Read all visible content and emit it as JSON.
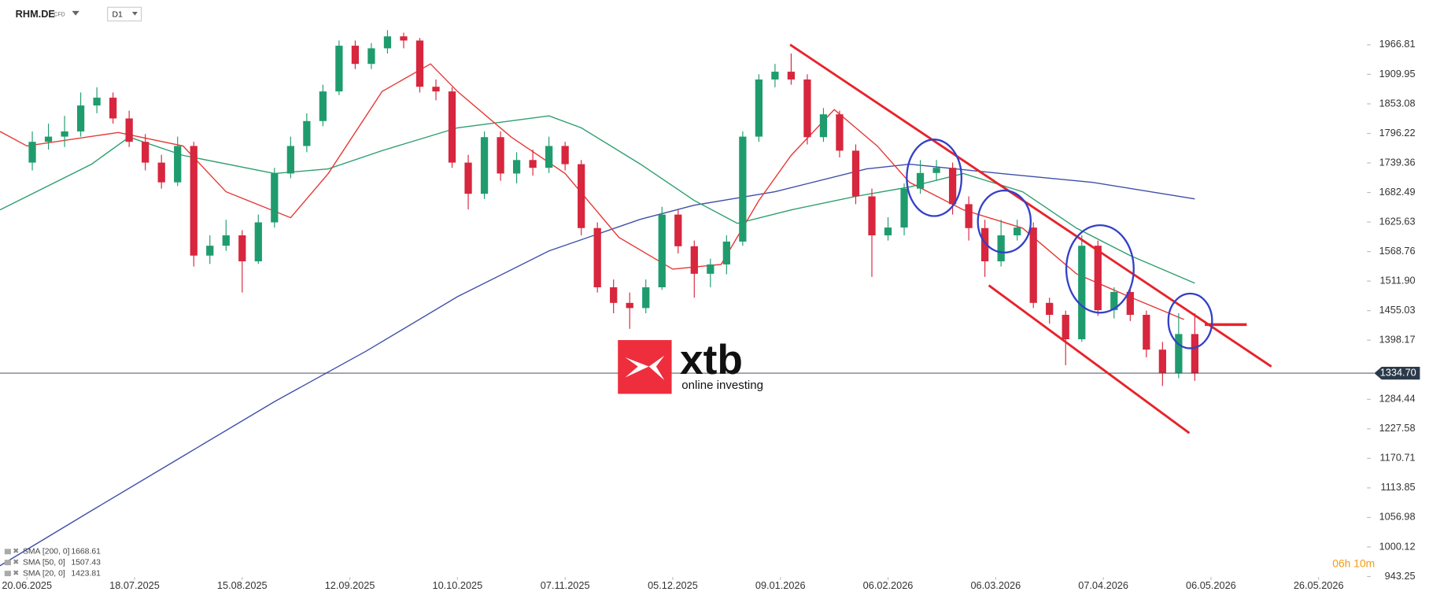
{
  "header": {
    "symbol": "RHM.DE",
    "instrument_type": "CFD",
    "timeframe": "D1"
  },
  "logo": {
    "brand": "xtb",
    "tagline": "online investing"
  },
  "timer": "06h 10m",
  "chart_data": {
    "type": "candlestick",
    "up_color": "#1f9c6e",
    "down_color": "#d7263d",
    "x": [
      1,
      4,
      7,
      10,
      13,
      16,
      19,
      22,
      25,
      28,
      31,
      34,
      37,
      40,
      43,
      46,
      49,
      52,
      55,
      58,
      61,
      64,
      67,
      70,
      73,
      76,
      79,
      82,
      85,
      88,
      91,
      94,
      97,
      100,
      103,
      106,
      109,
      112,
      115,
      118,
      121,
      124,
      127,
      130,
      133,
      136,
      139,
      142,
      145,
      148,
      151,
      154,
      157,
      160,
      163,
      166,
      169,
      172,
      175,
      178,
      181,
      184,
      187,
      190,
      193,
      196,
      199,
      202,
      205,
      208,
      211,
      214,
      217
    ],
    "ohlc": [
      [
        1740,
        1800,
        1725,
        1780
      ],
      [
        1780,
        1815,
        1765,
        1790
      ],
      [
        1790,
        1830,
        1770,
        1800
      ],
      [
        1800,
        1875,
        1790,
        1850
      ],
      [
        1850,
        1885,
        1835,
        1865
      ],
      [
        1865,
        1875,
        1815,
        1825
      ],
      [
        1825,
        1840,
        1770,
        1780
      ],
      [
        1780,
        1795,
        1725,
        1740
      ],
      [
        1740,
        1755,
        1690,
        1702
      ],
      [
        1702,
        1790,
        1695,
        1772
      ],
      [
        1772,
        1780,
        1540,
        1561
      ],
      [
        1561,
        1600,
        1545,
        1580
      ],
      [
        1580,
        1630,
        1570,
        1600
      ],
      [
        1600,
        1610,
        1490,
        1550
      ],
      [
        1550,
        1640,
        1545,
        1625
      ],
      [
        1625,
        1730,
        1615,
        1719
      ],
      [
        1719,
        1790,
        1710,
        1772
      ],
      [
        1772,
        1835,
        1760,
        1820
      ],
      [
        1820,
        1890,
        1810,
        1877
      ],
      [
        1877,
        1975,
        1870,
        1965
      ],
      [
        1965,
        1975,
        1920,
        1930
      ],
      [
        1930,
        1970,
        1920,
        1960
      ],
      [
        1960,
        1995,
        1950,
        1983
      ],
      [
        1983,
        1990,
        1960,
        1975
      ],
      [
        1975,
        1980,
        1875,
        1886
      ],
      [
        1886,
        1900,
        1860,
        1877
      ],
      [
        1877,
        1885,
        1730,
        1740
      ],
      [
        1740,
        1755,
        1650,
        1680
      ],
      [
        1680,
        1800,
        1670,
        1789
      ],
      [
        1789,
        1800,
        1705,
        1719
      ],
      [
        1719,
        1760,
        1700,
        1745
      ],
      [
        1745,
        1765,
        1715,
        1730
      ],
      [
        1730,
        1790,
        1720,
        1772
      ],
      [
        1772,
        1780,
        1725,
        1737
      ],
      [
        1737,
        1745,
        1600,
        1614
      ],
      [
        1614,
        1625,
        1490,
        1500
      ],
      [
        1500,
        1515,
        1450,
        1470
      ],
      [
        1470,
        1490,
        1420,
        1460
      ],
      [
        1460,
        1515,
        1450,
        1500
      ],
      [
        1500,
        1655,
        1495,
        1640
      ],
      [
        1640,
        1650,
        1565,
        1579
      ],
      [
        1579,
        1590,
        1480,
        1526
      ],
      [
        1526,
        1555,
        1500,
        1544
      ],
      [
        1544,
        1600,
        1525,
        1588
      ],
      [
        1588,
        1800,
        1580,
        1790
      ],
      [
        1790,
        1910,
        1780,
        1900
      ],
      [
        1900,
        1930,
        1885,
        1915
      ],
      [
        1915,
        1950,
        1890,
        1900
      ],
      [
        1900,
        1910,
        1775,
        1789
      ],
      [
        1789,
        1845,
        1780,
        1833
      ],
      [
        1833,
        1840,
        1750,
        1763
      ],
      [
        1763,
        1775,
        1660,
        1675
      ],
      [
        1675,
        1690,
        1520,
        1600
      ],
      [
        1600,
        1635,
        1590,
        1615
      ],
      [
        1615,
        1700,
        1600,
        1690
      ],
      [
        1690,
        1745,
        1680,
        1720
      ],
      [
        1720,
        1745,
        1705,
        1730
      ],
      [
        1730,
        1740,
        1640,
        1660
      ],
      [
        1660,
        1675,
        1590,
        1614
      ],
      [
        1614,
        1630,
        1520,
        1550
      ],
      [
        1550,
        1630,
        1540,
        1600
      ],
      [
        1600,
        1630,
        1590,
        1615
      ],
      [
        1615,
        1625,
        1460,
        1470
      ],
      [
        1470,
        1480,
        1430,
        1447
      ],
      [
        1447,
        1455,
        1350,
        1400
      ],
      [
        1400,
        1600,
        1395,
        1580
      ],
      [
        1580,
        1590,
        1445,
        1456
      ],
      [
        1456,
        1500,
        1440,
        1491
      ],
      [
        1491,
        1500,
        1435,
        1447
      ],
      [
        1447,
        1455,
        1365,
        1380
      ],
      [
        1380,
        1395,
        1310,
        1335
      ],
      [
        1335,
        1450,
        1325,
        1410
      ],
      [
        1410,
        1450,
        1320,
        1334
      ]
    ],
    "series": [
      {
        "name": "SMA [200, 0]",
        "last": 1668.61,
        "color": "#3f4fa8",
        "x": [
          -5,
          12,
          29,
          46,
          63,
          80,
          97,
          114,
          124,
          139,
          156,
          164,
          181,
          198,
          217
        ],
        "values": [
          964,
          1070,
          1175,
          1280,
          1377,
          1482,
          1570,
          1631,
          1658,
          1684,
          1728,
          1737,
          1719,
          1702,
          1670
        ]
      },
      {
        "name": "SMA [50, 0]",
        "last": 1507.43,
        "color": "#2e9e6e",
        "x": [
          -5,
          12,
          19,
          29,
          46,
          56,
          66,
          80,
          97,
          103,
          114,
          124,
          132,
          142,
          154,
          164,
          174,
          185,
          195,
          205,
          217
        ],
        "values": [
          1649,
          1737,
          1789,
          1754,
          1719,
          1728,
          1763,
          1807,
          1830,
          1807,
          1737,
          1667,
          1623,
          1649,
          1675,
          1693,
          1719,
          1684,
          1614,
          1561,
          1508
        ]
      },
      {
        "name": "SMA [20, 0]",
        "last": 1423.81,
        "color": "#e53935",
        "x": [
          -5,
          0,
          17,
          29,
          37,
          49,
          56,
          66,
          75,
          80,
          90,
          100,
          110,
          120,
          129,
          136,
          142,
          150,
          158,
          164,
          174,
          185,
          195,
          205,
          215
        ],
        "values": [
          1800,
          1772,
          1798,
          1772,
          1684,
          1634,
          1719,
          1877,
          1930,
          1877,
          1789,
          1719,
          1596,
          1535,
          1544,
          1667,
          1754,
          1842,
          1772,
          1702,
          1649,
          1614,
          1526,
          1481,
          1438
        ]
      }
    ],
    "current_price": {
      "value": 1334.7,
      "label": "1334.70"
    },
    "xlim": [
      -5,
      249
    ],
    "ylim": [
      900,
      2053
    ],
    "xticks": [
      {
        "value": 0,
        "label": "20.06.2025"
      },
      {
        "value": 20,
        "label": "18.07.2025"
      },
      {
        "value": 40,
        "label": "15.08.2025"
      },
      {
        "value": 60,
        "label": "12.09.2025"
      },
      {
        "value": 80,
        "label": "10.10.2025"
      },
      {
        "value": 100,
        "label": "07.11.2025"
      },
      {
        "value": 120,
        "label": "05.12.2025"
      },
      {
        "value": 140,
        "label": "09.01.2026"
      },
      {
        "value": 160,
        "label": "06.02.2026"
      },
      {
        "value": 180,
        "label": "06.03.2026"
      },
      {
        "value": 200,
        "label": "07.04.2026"
      },
      {
        "value": 220,
        "label": "06.05.2026"
      },
      {
        "value": 240,
        "label": "26.05.2026"
      }
    ],
    "yticks": [
      1966.81,
      1909.95,
      1853.08,
      1796.22,
      1739.36,
      1682.49,
      1625.63,
      1568.76,
      {
        "value": 1511.9,
        "label": "1511.90"
      },
      1455.03,
      1398.17,
      1284.44,
      1227.58,
      1170.71,
      1113.85,
      1056.98,
      1000.12,
      943.25
    ]
  }
}
